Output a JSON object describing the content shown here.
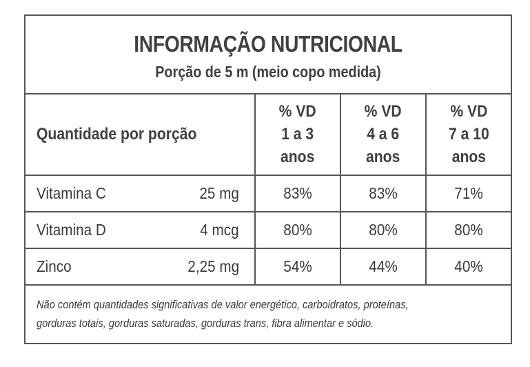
{
  "label": {
    "title": "INFORMAÇÃO NUTRICIONAL",
    "serving": "Porção de 5 m  (meio copo medida)",
    "columns": {
      "quantity": "Quantidade por porção",
      "vd": [
        {
          "line1": "% VD",
          "line2": "1 a 3",
          "line3": "anos"
        },
        {
          "line1": "% VD",
          "line2": "4 a 6",
          "line3": "anos"
        },
        {
          "line1": "% VD",
          "line2": "7 a 10",
          "line3": "anos"
        }
      ]
    },
    "rows": [
      {
        "name": "Vitamina C",
        "amount": "25 mg",
        "vd": [
          "83%",
          "83%",
          "71%"
        ]
      },
      {
        "name": "Vitamina D",
        "amount": "4 mcg",
        "vd": [
          "80%",
          "80%",
          "80%"
        ]
      },
      {
        "name": "Zinco",
        "amount": "2,25 mg",
        "vd": [
          "54%",
          "44%",
          "40%"
        ]
      }
    ],
    "footnote": {
      "line1": "Não contém quantidades significativas de valor energético, carboidratos, proteínas,",
      "line2": "gorduras totais, gorduras saturadas, gorduras trans, fibra alimentar e sódio."
    }
  }
}
